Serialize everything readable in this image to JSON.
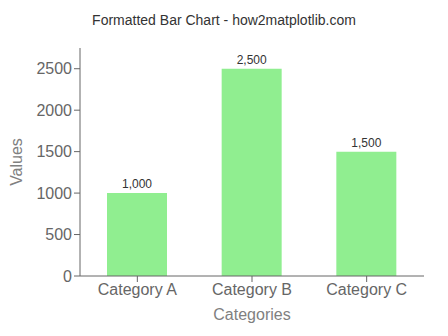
{
  "chart_data": {
    "type": "bar",
    "title": "Formatted Bar Chart - how2matplotlib.com",
    "xlabel": "Categories",
    "ylabel": "Values",
    "categories": [
      "Category A",
      "Category B",
      "Category C"
    ],
    "values": [
      1000,
      2500,
      1500
    ],
    "value_labels": [
      "1,000",
      "2,500",
      "1,500"
    ],
    "data_labels": true,
    "color": "#90EE90",
    "ylim": [
      0,
      2750
    ],
    "yticks": [
      0,
      500,
      1000,
      1500,
      2000,
      2500
    ],
    "grid": false
  }
}
